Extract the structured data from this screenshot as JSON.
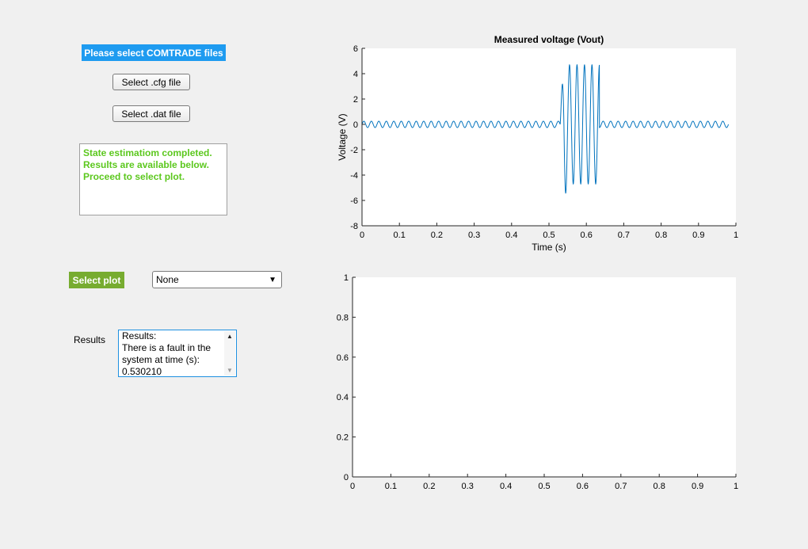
{
  "panel": {
    "header_label": "Please select COMTRADE files",
    "cfg_button": "Select .cfg file",
    "dat_button": "Select .dat file",
    "status_lines": [
      "State estimatiom completed.",
      "Results are available below.",
      "Proceed to select plot."
    ],
    "status_color": "#5cc81e",
    "select_plot_label": "Select plot",
    "plot_dropdown_value": "None",
    "results_label": "Results",
    "results_lines": [
      "Results:",
      "There is a fault in the",
      "system at time (s):",
      "0.530210"
    ]
  },
  "colors": {
    "header_bg": "#1e9bf0",
    "select_plot_bg": "#77ac30",
    "line_color": "#0072bd"
  },
  "chart_data": [
    {
      "type": "line",
      "title": "Measured voltage (Vout)",
      "xlabel": "Time (s)",
      "ylabel": "Voltage (V)",
      "xlim": [
        0,
        1
      ],
      "ylim": [
        -8,
        6
      ],
      "xticks": [
        "0",
        "0.1",
        "0.2",
        "0.3",
        "0.4",
        "0.5",
        "0.6",
        "0.7",
        "0.8",
        "0.9",
        "1"
      ],
      "yticks": [
        "-8",
        "-6",
        "-4",
        "-2",
        "0",
        "2",
        "4",
        "6"
      ],
      "series": [
        {
          "signal": {
            "t_end": 0.98,
            "frequency_hz": 50,
            "normal_amplitude": 0.25,
            "fault_start": 0.53,
            "fault_end": 0.635,
            "fault_amplitude": 4.7,
            "fault_first_peak": 1.3,
            "fault_min": -6.2
          }
        }
      ]
    },
    {
      "type": "line",
      "title": "",
      "xlabel": "",
      "ylabel": "",
      "xlim": [
        0,
        1
      ],
      "ylim": [
        0,
        1
      ],
      "xticks": [
        "0",
        "0.1",
        "0.2",
        "0.3",
        "0.4",
        "0.5",
        "0.6",
        "0.7",
        "0.8",
        "0.9",
        "1"
      ],
      "yticks": [
        "0",
        "0.2",
        "0.4",
        "0.6",
        "0.8",
        "1"
      ],
      "series": []
    }
  ]
}
